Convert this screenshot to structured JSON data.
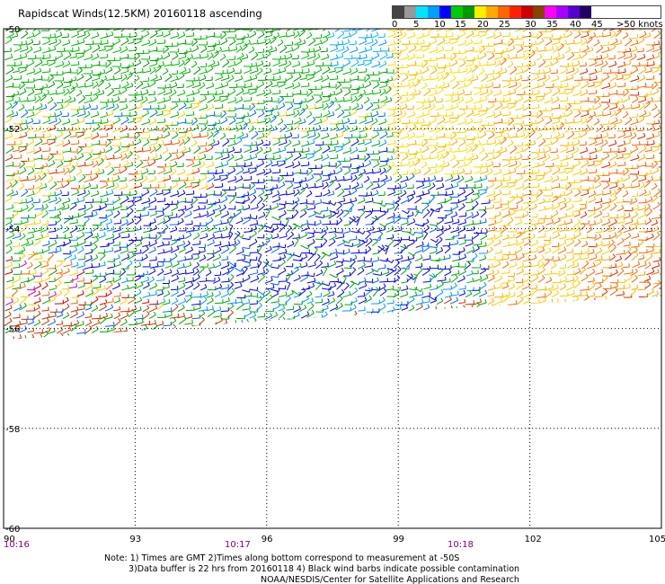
{
  "title": "Rapidscat Winds(12.5KM) 20160118 ascending",
  "legend": {
    "labels": [
      "0",
      "5",
      "10",
      "15",
      "20",
      "25",
      "30",
      "35",
      "40",
      "45",
      ">50 knots"
    ],
    "colors": [
      "#444444",
      "#999999",
      "#00e5ff",
      "#00a0ff",
      "#0000ff",
      "#00cc00",
      "#009900",
      "#ffee00",
      "#ffaa00",
      "#ff6600",
      "#ff2200",
      "#cc0000",
      "#884400",
      "#ff00ff",
      "#aa00ff",
      "#5500cc",
      "#220066"
    ]
  },
  "axes": {
    "latitudes": [
      "-50",
      "-52",
      "-54",
      "-56",
      "-58",
      "-60"
    ],
    "longitudes": [
      "90",
      "93",
      "96",
      "99",
      "102",
      "105"
    ],
    "times": [
      "10:16",
      "10:17",
      "10:18"
    ]
  },
  "note": {
    "line1": "Note: 1) Times are GMT 2)Times along bottom correspond to measurement at -50S",
    "line2": "3)Data buffer is 22 hrs from 20160118 4) Black wind barbs indicate possible contamination",
    "line3": "NOAA/NESDIS/Center for Satellite Applications and Research"
  }
}
